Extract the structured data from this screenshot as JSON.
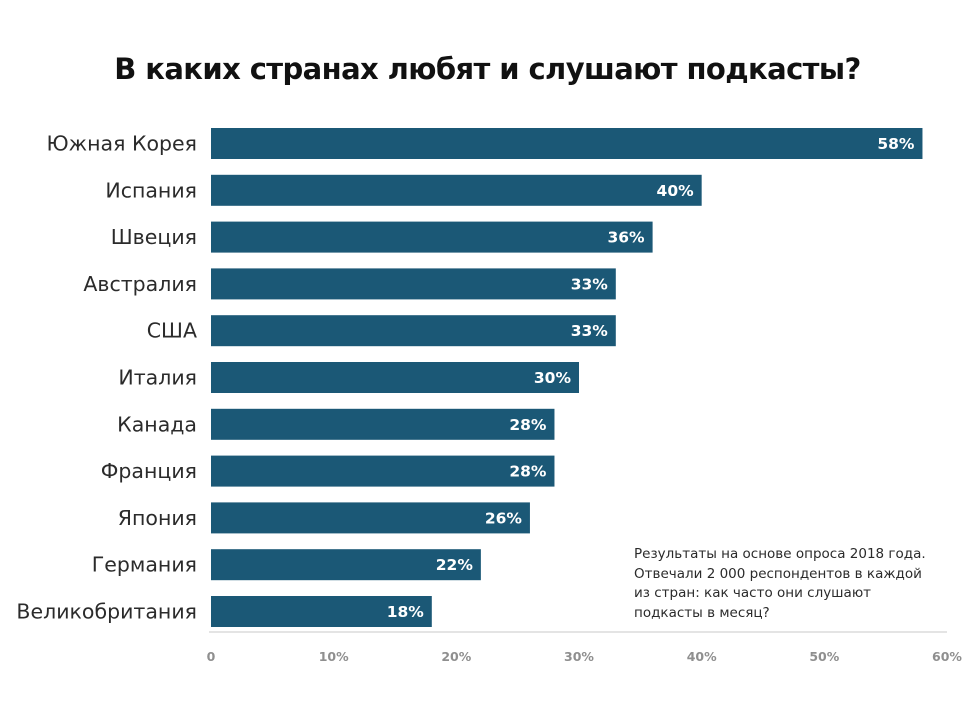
{
  "chart_data": {
    "type": "bar",
    "orientation": "horizontal",
    "title": "В каких странах любят и слушают подкасты?",
    "categories": [
      "Южная Корея",
      "Испания",
      "Швеция",
      "Австралия",
      "США",
      "Италия",
      "Канада",
      "Франция",
      "Япония",
      "Германия",
      "Великобритания"
    ],
    "values": [
      58,
      40,
      36,
      33,
      33,
      30,
      28,
      28,
      26,
      22,
      18
    ],
    "value_labels": [
      "58%",
      "40%",
      "36%",
      "33%",
      "33%",
      "30%",
      "28%",
      "28%",
      "26%",
      "22%",
      "18%"
    ],
    "xlim": [
      0,
      60
    ],
    "xticks": [
      0,
      10,
      20,
      30,
      40,
      50,
      60
    ],
    "xtick_labels": [
      "0",
      "10%",
      "20%",
      "30%",
      "40%",
      "50%",
      "60%"
    ],
    "xlabel": "",
    "ylabel": "",
    "grid": false,
    "bar_color": "#1b5876",
    "note_lines": [
      "Результаты на основе опроса 2018 года.",
      "Отвечали 2 000 респондентов в каждой",
      "из стран: как часто они слушают",
      "подкасты в месяц?"
    ]
  }
}
